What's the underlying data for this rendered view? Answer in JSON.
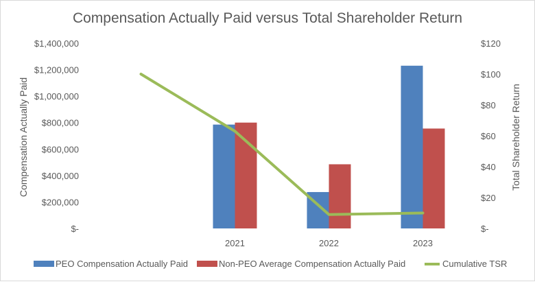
{
  "chart_data": {
    "type": "bar",
    "title": "Compensation  Actually Paid versus Total Shareholder Return",
    "categories": [
      "",
      "2021",
      "2022",
      "2023"
    ],
    "series": [
      {
        "name": "PEO Compensation Actually Paid",
        "type": "bar",
        "axis": "left",
        "color": "#4f81bd",
        "values": [
          null,
          785000,
          275000,
          1230000
        ]
      },
      {
        "name": "Non-PEO Average Compensation Actually Paid",
        "type": "bar",
        "axis": "left",
        "color": "#c0504d",
        "values": [
          null,
          800000,
          485000,
          755000
        ]
      },
      {
        "name": "Cumulative TSR",
        "type": "line",
        "axis": "right",
        "color": "#9bbb59",
        "values": [
          100,
          63,
          9,
          10
        ]
      }
    ],
    "left_axis": {
      "label": "Compensation Actually Paid",
      "ylim": [
        0,
        1400000
      ],
      "ticks": [
        0,
        200000,
        400000,
        600000,
        800000,
        1000000,
        1200000,
        1400000
      ],
      "tick_labels": [
        "$-",
        "$200,000",
        "$400,000",
        "$600,000",
        "$800,000",
        "$1,000,000",
        "$1,200,000",
        "$1,400,000"
      ]
    },
    "right_axis": {
      "label": "Total Shareholder Return",
      "ylim": [
        0,
        120
      ],
      "ticks": [
        0,
        20,
        40,
        60,
        80,
        100,
        120
      ],
      "tick_labels": [
        "$-",
        "$20",
        "$40",
        "$60",
        "$80",
        "$100",
        "$120"
      ]
    },
    "grid": false,
    "legend_position": "bottom"
  }
}
